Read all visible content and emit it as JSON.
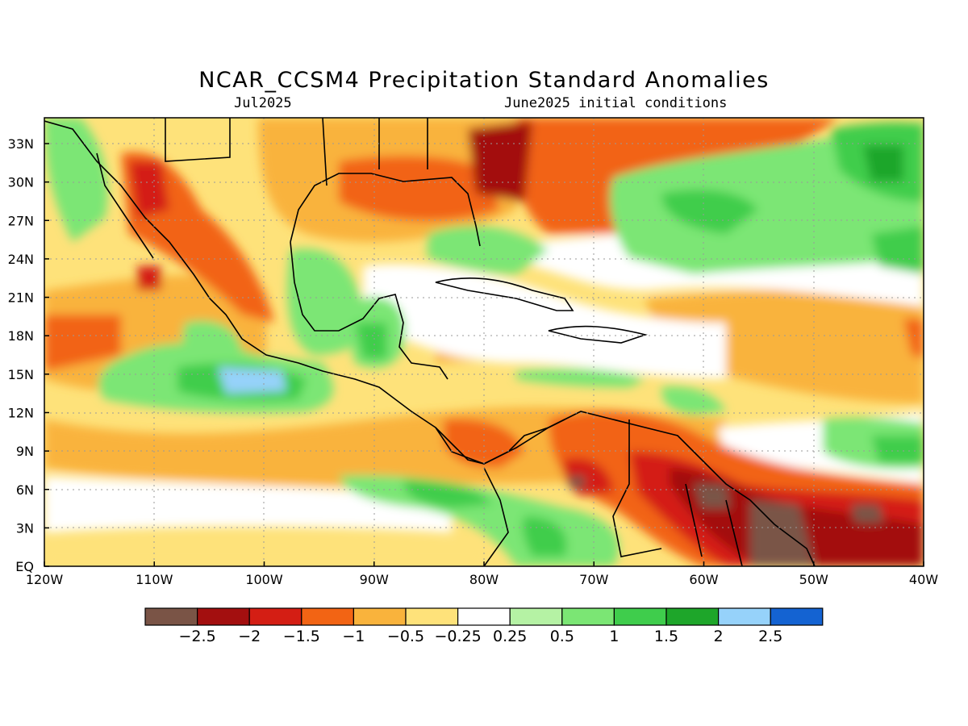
{
  "title": "NCAR_CCSM4 Precipitation Standard Anomalies",
  "subtitle_left": "Jul2025",
  "subtitle_right": "June2025 initial conditions",
  "lat_labels": [
    "33N",
    "30N",
    "27N",
    "24N",
    "21N",
    "18N",
    "15N",
    "12N",
    "9N",
    "6N",
    "3N",
    "EQ"
  ],
  "lon_labels": [
    "120W",
    "110W",
    "100W",
    "90W",
    "80W",
    "70W",
    "60W",
    "50W",
    "40W"
  ],
  "colorbar": {
    "labels": [
      "-2.5",
      "-2",
      "-1.5",
      "-1",
      "-0.5",
      "-0.25",
      "0.25",
      "0.5",
      "1",
      "1.5",
      "2",
      "2.5"
    ],
    "colors": [
      "#7a5446",
      "#a30f0f",
      "#d41e14",
      "#f26414",
      "#f9b33c",
      "#fee27a",
      "#ffffff",
      "#b5f2a4",
      "#7be674",
      "#3fcd4c",
      "#1ea62a",
      "#96d2fa",
      "#1463d2"
    ]
  },
  "palette": {
    "brown": "#7a5446",
    "dark_red": "#a30f0f",
    "red": "#d41e14",
    "orange": "#f26414",
    "light_orange": "#f9b33c",
    "yellow": "#fee27a",
    "white": "#ffffff",
    "light_green": "#b5f2a4",
    "green": "#7be674",
    "mid_green": "#3fcd4c",
    "dark_green": "#1ea62a",
    "light_blue": "#96d2fa"
  }
}
